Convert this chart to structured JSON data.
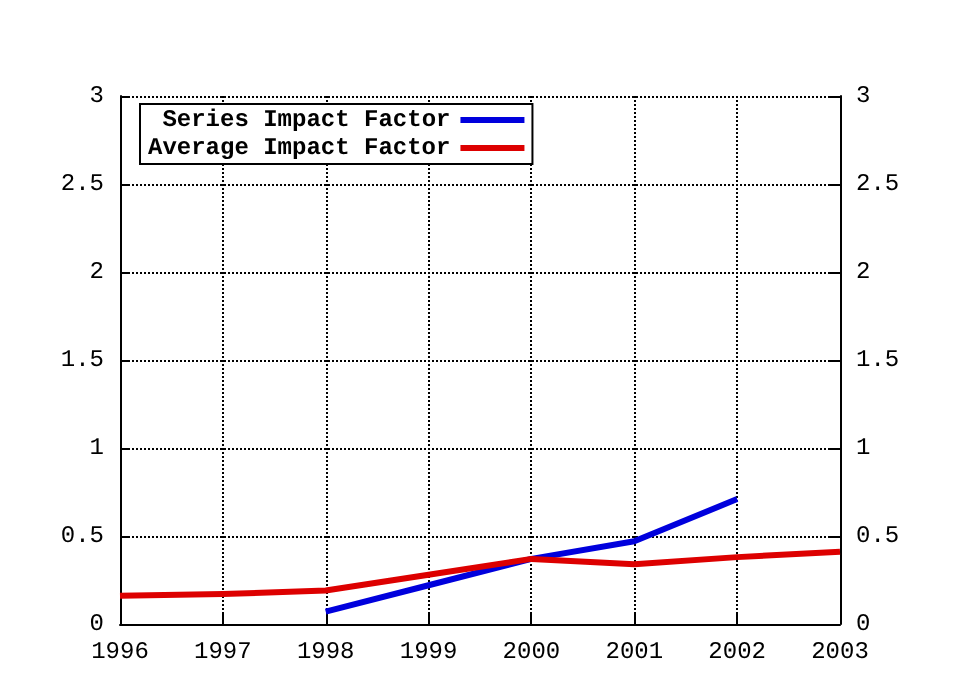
{
  "chart_data": {
    "type": "line",
    "x": [
      1996,
      1997,
      1998,
      1999,
      2000,
      2001,
      2002,
      2003
    ],
    "series": [
      {
        "name": "Series Impact Factor",
        "color": "#0000dd",
        "values": [
          null,
          null,
          0.07,
          0.22,
          0.37,
          0.47,
          0.71,
          null
        ]
      },
      {
        "name": "Average Impact Factor",
        "color": "#dd0000",
        "values": [
          0.16,
          0.17,
          0.19,
          0.28,
          0.37,
          0.34,
          0.38,
          0.41
        ]
      }
    ],
    "xlim": [
      1996,
      2003
    ],
    "xticks": [
      1996,
      1997,
      1998,
      1999,
      2000,
      2001,
      2002,
      2003
    ],
    "ylim": [
      0,
      3
    ],
    "yticks": [
      0,
      0.5,
      1,
      1.5,
      2,
      2.5,
      3
    ],
    "y2lim": [
      0,
      3
    ],
    "y2ticks": [
      0,
      0.5,
      1,
      1.5,
      2,
      2.5,
      3
    ],
    "grid": true,
    "legend": "top left",
    "marker": "none",
    "line_style": "solid"
  }
}
